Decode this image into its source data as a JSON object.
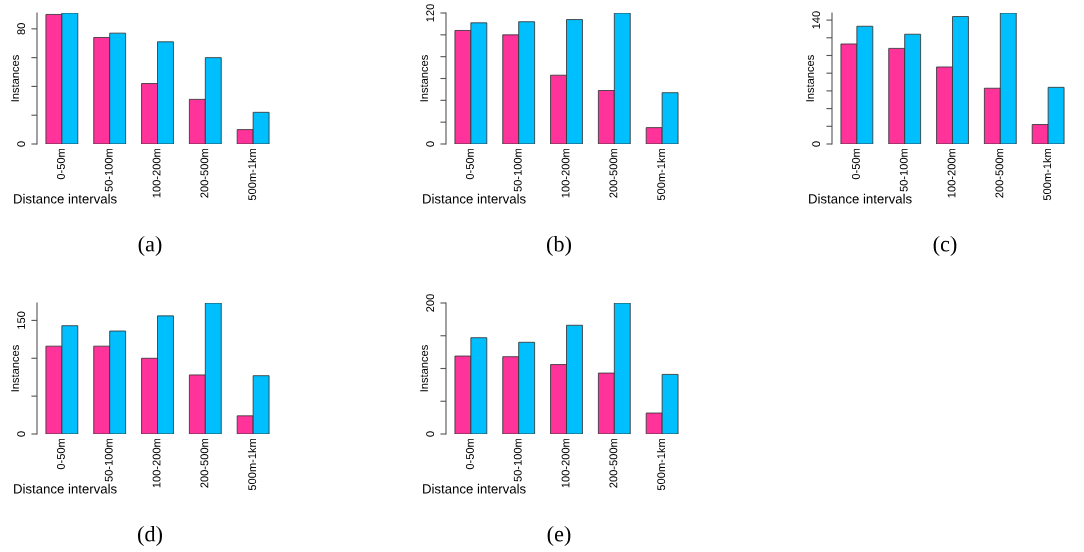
{
  "chart_data": [
    {
      "type": "bar",
      "title": "(a)",
      "xlabel": "Distance intervals",
      "ylabel": "Instances",
      "categories": [
        "0-50m",
        "50-100m",
        "100-200m",
        "200-500m",
        "500m-1km"
      ],
      "series": [
        {
          "color": "#ff3399",
          "values": [
            90,
            74,
            42,
            31,
            10
          ]
        },
        {
          "color": "#00bfff",
          "values": [
            91,
            77,
            71,
            60,
            22
          ]
        }
      ],
      "ylim": [
        0,
        91
      ],
      "yticks": [
        0,
        {
          "value": 20,
          "label": null
        },
        {
          "value": 40,
          "label": null
        },
        {
          "value": 60,
          "label": null
        },
        80
      ]
    },
    {
      "type": "bar",
      "title": "(b)",
      "xlabel": "Distance intervals",
      "ylabel": "Instances",
      "categories": [
        "0-50m",
        "50-100m",
        "100-200m",
        "200-500m",
        "500m-1km"
      ],
      "series": [
        {
          "color": "#ff3399",
          "values": [
            104,
            100,
            63,
            49,
            15
          ]
        },
        {
          "color": "#00bfff",
          "values": [
            111,
            112,
            114,
            120,
            47
          ]
        }
      ],
      "ylim": [
        0,
        120
      ],
      "yticks": [
        0,
        {
          "value": 20,
          "label": null
        },
        {
          "value": 40,
          "label": null
        },
        {
          "value": 60,
          "label": null
        },
        {
          "value": 80,
          "label": null
        },
        {
          "value": 100,
          "label": null
        },
        120
      ]
    },
    {
      "type": "bar",
      "title": "(c)",
      "xlabel": "Distance intervals",
      "ylabel": "Instances",
      "categories": [
        "0-50m",
        "50-100m",
        "100-200m",
        "200-500m",
        "500m-1km"
      ],
      "series": [
        {
          "color": "#ff3399",
          "values": [
            113,
            108,
            87,
            63,
            22
          ]
        },
        {
          "color": "#00bfff",
          "values": [
            133,
            124,
            144,
            148,
            64
          ]
        }
      ],
      "ylim": [
        0,
        148
      ],
      "yticks": [
        0,
        {
          "value": 20,
          "label": null
        },
        {
          "value": 40,
          "label": null
        },
        {
          "value": 60,
          "label": null
        },
        {
          "value": 80,
          "label": null
        },
        {
          "value": 100,
          "label": null
        },
        {
          "value": 120,
          "label": null
        },
        140
      ]
    },
    {
      "type": "bar",
      "title": "(d)",
      "xlabel": "Distance intervals",
      "ylabel": "Instances",
      "categories": [
        "0-50m",
        "50-100m",
        "100-200m",
        "200-500m",
        "500m-1km"
      ],
      "series": [
        {
          "color": "#ff3399",
          "values": [
            116,
            116,
            100,
            78,
            24
          ]
        },
        {
          "color": "#00bfff",
          "values": [
            143,
            136,
            156,
            173,
            77
          ]
        }
      ],
      "ylim": [
        0,
        173
      ],
      "yticks": [
        0,
        {
          "value": 50,
          "label": null
        },
        {
          "value": 100,
          "label": null
        },
        150
      ]
    },
    {
      "type": "bar",
      "title": "(e)",
      "xlabel": "Distance intervals",
      "ylabel": "Instances",
      "categories": [
        "0-50m",
        "50-100m",
        "100-200m",
        "200-500m",
        "500m-1km"
      ],
      "series": [
        {
          "color": "#ff3399",
          "values": [
            119,
            118,
            106,
            93,
            32
          ]
        },
        {
          "color": "#00bfff",
          "values": [
            147,
            140,
            166,
            200,
            91
          ]
        }
      ],
      "ylim": [
        0,
        200
      ],
      "yticks": [
        0,
        {
          "value": 50,
          "label": null
        },
        {
          "value": 100,
          "label": null
        },
        {
          "value": 150,
          "label": null
        },
        200
      ]
    }
  ]
}
